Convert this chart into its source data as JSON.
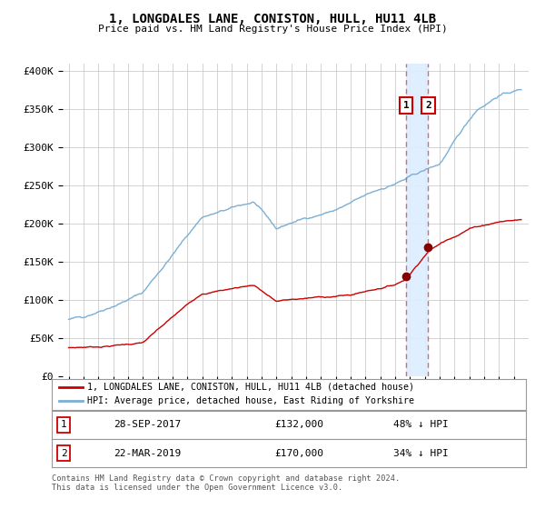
{
  "title": "1, LONGDALES LANE, CONISTON, HULL, HU11 4LB",
  "subtitle": "Price paid vs. HM Land Registry's House Price Index (HPI)",
  "legend_label1": "1, LONGDALES LANE, CONISTON, HULL, HU11 4LB (detached house)",
  "legend_label2": "HPI: Average price, detached house, East Riding of Yorkshire",
  "annotation1_label": "1",
  "annotation2_label": "2",
  "sale1_date_label": "28-SEP-2017",
  "sale1_price_label": "£132,000",
  "sale1_hpi_label": "48% ↓ HPI",
  "sale2_date_label": "22-MAR-2019",
  "sale2_price_label": "£170,000",
  "sale2_hpi_label": "34% ↓ HPI",
  "footer": "Contains HM Land Registry data © Crown copyright and database right 2024.\nThis data is licensed under the Open Government Licence v3.0.",
  "sale1_year": 2017.74,
  "sale1_price": 132000,
  "sale2_year": 2019.23,
  "sale2_price": 170000,
  "hpi_color": "#7bafd4",
  "price_color": "#cc0000",
  "sale_dot_color": "#880000",
  "vline_color": "#dd6666",
  "vband_color": "#ddeeff",
  "grid_color": "#cccccc",
  "background_color": "#ffffff",
  "ylim_min": 0,
  "ylim_max": 410000,
  "xlim_min": 1994.6,
  "xlim_max": 2026.0
}
